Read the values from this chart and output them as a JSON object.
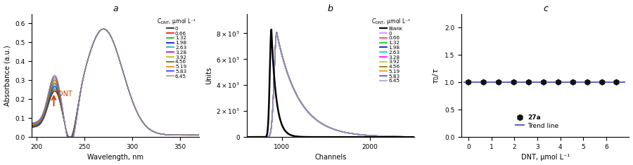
{
  "panel_a": {
    "title": "a",
    "xlabel": "Wavelength, nm",
    "ylabel": "Absorbance (a.u.)",
    "xlim": [
      195,
      370
    ],
    "ylim": [
      0,
      0.65
    ],
    "yticks": [
      0.0,
      0.1,
      0.2,
      0.3,
      0.4,
      0.5,
      0.6
    ],
    "xticks": [
      200,
      250,
      300,
      350
    ],
    "legend_title": "$C_{\\mathrm{DNT}}$, μmol L⁻¹",
    "concentrations": [
      "0",
      "0.66",
      "1.32",
      "1.98",
      "2.63",
      "3.28",
      "3.92",
      "4.56",
      "5.19",
      "5.83",
      "6.45"
    ],
    "colors": [
      "#111111",
      "#ff0000",
      "#00bb00",
      "#0000dd",
      "#00bbbb",
      "#bb00bb",
      "#bbbb00",
      "#666600",
      "#ff8800",
      "#3333ff",
      "#999999"
    ],
    "arrow_text": "DNT",
    "arrow_color": "#cc4400"
  },
  "panel_b": {
    "title": "b",
    "xlabel": "Channels",
    "ylabel": "Units",
    "xlim": [
      600,
      2500
    ],
    "ylim": [
      0,
      9500
    ],
    "yticks": [
      0,
      2000,
      4000,
      6000,
      8000
    ],
    "xticks": [
      1000,
      2000
    ],
    "blank_color": "#000000",
    "legend_title": "$C_{\\mathrm{DNT}}$, μmol L⁻¹",
    "concentrations": [
      "0",
      "0.66",
      "1.32",
      "1.98",
      "2.63",
      "3.28",
      "3.92",
      "4.56",
      "5.19",
      "5.83",
      "6.45"
    ],
    "colors": [
      "#cc88ff",
      "#ff3333",
      "#00cc00",
      "#0000cc",
      "#00cccc",
      "#ff00ff",
      "#cccc00",
      "#777700",
      "#ff8800",
      "#4444ff",
      "#99aacc"
    ]
  },
  "panel_c": {
    "title": "c",
    "xlabel": "DNT, μmol L⁻¹",
    "ylabel": "$\\tau_0/\\tau$",
    "xlim": [
      -0.3,
      7
    ],
    "ylim": [
      0,
      2.25
    ],
    "yticks": [
      0.0,
      0.5,
      1.0,
      1.5,
      2.0
    ],
    "xticks": [
      0,
      1,
      2,
      3,
      4,
      5,
      6
    ],
    "x_data": [
      0.0,
      0.66,
      1.32,
      1.98,
      2.63,
      3.28,
      3.92,
      4.56,
      5.19,
      5.83,
      6.45
    ],
    "y_data": [
      1.0,
      1.0,
      1.0,
      1.0,
      1.0,
      1.0,
      1.0,
      1.0,
      1.0,
      1.0,
      1.0
    ],
    "marker_color": "#111111",
    "trend_color": "#6666cc",
    "legend_label_27a": "27a",
    "legend_label_trend": "Trend line"
  }
}
